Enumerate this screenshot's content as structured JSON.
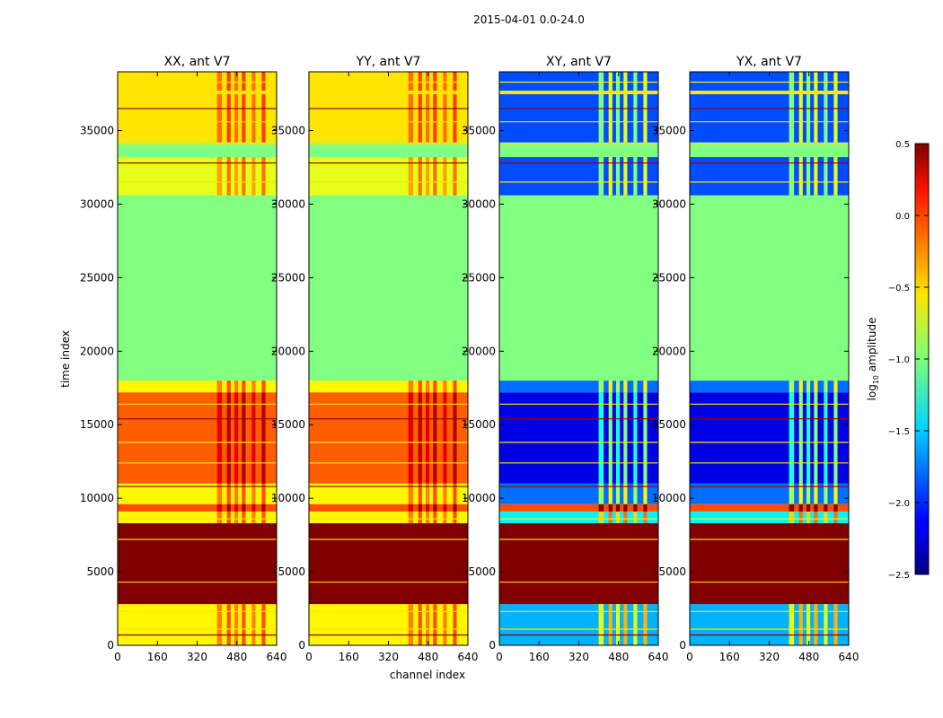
{
  "chart_data": {
    "type": "heatmap",
    "title": "2015-04-01 0.0-24.0",
    "xlabel": "channel index",
    "ylabel": "time index",
    "x_ticks": [
      0,
      160,
      320,
      480,
      640
    ],
    "y_ticks": [
      0,
      5000,
      10000,
      15000,
      20000,
      25000,
      30000,
      35000
    ],
    "xlim": [
      0,
      640
    ],
    "ylim": [
      0,
      39000
    ],
    "panels": [
      {
        "name": "XX, ant V7",
        "kind": "parallel"
      },
      {
        "name": "YY, ant V7",
        "kind": "parallel"
      },
      {
        "name": "XY, ant V7",
        "kind": "cross"
      },
      {
        "name": "YX, ant V7",
        "kind": "cross"
      }
    ],
    "time_bands": [
      {
        "t0": 0,
        "t1": 2800,
        "parallel": -0.6,
        "cross": -1.6
      },
      {
        "t0": 2800,
        "t1": 8300,
        "parallel": 0.5,
        "cross": 0.5
      },
      {
        "t0": 8300,
        "t1": 9100,
        "parallel": -0.6,
        "cross": -1.4
      },
      {
        "t0": 9100,
        "t1": 9600,
        "parallel": -0.1,
        "cross": -0.1
      },
      {
        "t0": 9600,
        "t1": 11000,
        "parallel": -0.6,
        "cross": -1.8
      },
      {
        "t0": 11000,
        "t1": 17200,
        "parallel": -0.15,
        "cross": -2.2
      },
      {
        "t0": 17200,
        "t1": 18000,
        "parallel": -0.6,
        "cross": -1.8
      },
      {
        "t0": 18000,
        "t1": 30600,
        "parallel": -1.0,
        "cross": -1.0
      },
      {
        "t0": 30600,
        "t1": 33200,
        "parallel": -0.7,
        "cross": -1.9
      },
      {
        "t0": 33200,
        "t1": 34200,
        "parallel": -1.0,
        "cross": -1.0
      },
      {
        "t0": 34200,
        "t1": 39000,
        "parallel": -0.55,
        "cross": -1.9
      }
    ],
    "colorbar": {
      "label": "log",
      "label_sub": "10",
      "label_rest": " amplitude",
      "min": -2.5,
      "max": 0.5,
      "ticks": [
        "0.5",
        "0.0",
        "−0.5",
        "−1.0",
        "−1.5",
        "−2.0",
        "−2.5"
      ],
      "tick_values": [
        0.5,
        0.0,
        -0.5,
        -1.0,
        -1.5,
        -2.0,
        -2.5
      ],
      "colormap": "jet"
    }
  }
}
